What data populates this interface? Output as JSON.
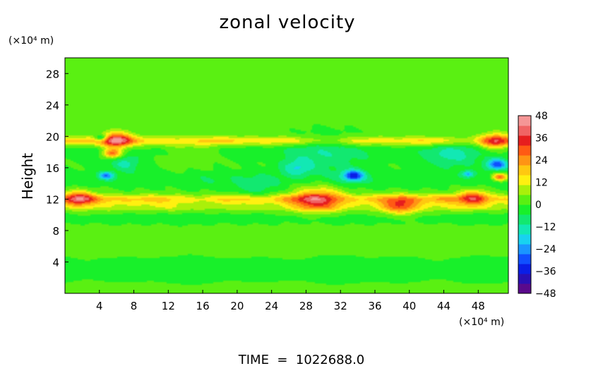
{
  "chart_data": {
    "type": "heatmap",
    "title": "zonal velocity",
    "ylabel": "Height",
    "x_unit": "(×10⁴ m)",
    "y_unit": "(×10⁴ m)",
    "footer": "TIME  =  1022688.0",
    "xlim": [
      0,
      51.5
    ],
    "ylim": [
      0,
      30
    ],
    "x_ticks": [
      4,
      8,
      12,
      16,
      20,
      24,
      28,
      32,
      36,
      40,
      44,
      48
    ],
    "y_ticks": [
      4,
      8,
      12,
      16,
      20,
      24,
      28
    ],
    "colorbar": {
      "labels": [
        "48",
        "36",
        "24",
        "12",
        "0",
        "−12",
        "−24",
        "−36",
        "−48"
      ],
      "values": [
        48,
        36,
        24,
        12,
        0,
        -12,
        -24,
        -36,
        -48
      ],
      "range": [
        -48,
        48
      ],
      "colors": [
        "#5a0a8c",
        "#2a10b4",
        "#0a1ee6",
        "#1050ff",
        "#1a96ff",
        "#18d2f0",
        "#12e8b4",
        "#12e870",
        "#18f02a",
        "#5af012",
        "#aaf00a",
        "#fff010",
        "#ffc810",
        "#ff9414",
        "#ff5a14",
        "#e61e1e",
        "#f06464",
        "#f59696"
      ]
    },
    "field": {
      "background": 1,
      "bands": [
        {
          "y": 19.4,
          "half_width": 0.6,
          "value": 18
        },
        {
          "y": 12.0,
          "half_width": 0.6,
          "value": 20
        },
        {
          "y": 11.0,
          "half_width": 0.6,
          "value": 10
        },
        {
          "y": 18.0,
          "half_width": 1.3,
          "value": -5
        },
        {
          "y": 14.5,
          "half_width": 1.2,
          "value": -6
        },
        {
          "y": 9.6,
          "half_width": 0.8,
          "value": -4
        },
        {
          "y": 3.0,
          "half_width": 1.8,
          "value": -3
        }
      ],
      "spots": [
        {
          "x": 6.0,
          "y": 19.5,
          "r": 1.0,
          "value": 36
        },
        {
          "x": 5.5,
          "y": 17.8,
          "r": 0.6,
          "value": 30
        },
        {
          "x": 4.8,
          "y": 15.0,
          "r": 0.5,
          "value": -24
        },
        {
          "x": 4.2,
          "y": 19.8,
          "r": 0.4,
          "value": -24
        },
        {
          "x": 1.5,
          "y": 12.1,
          "r": 1.0,
          "value": 28
        },
        {
          "x": 7.0,
          "y": 16.5,
          "r": 1.0,
          "value": -12
        },
        {
          "x": 33.5,
          "y": 15.0,
          "r": 0.7,
          "value": -30
        },
        {
          "x": 29.5,
          "y": 12.0,
          "r": 1.6,
          "value": 26
        },
        {
          "x": 39.0,
          "y": 11.2,
          "r": 1.2,
          "value": 24
        },
        {
          "x": 30.5,
          "y": 17.5,
          "r": 2.6,
          "value": -8
        },
        {
          "x": 50.2,
          "y": 16.4,
          "r": 0.7,
          "value": -30
        },
        {
          "x": 50.5,
          "y": 14.8,
          "r": 0.5,
          "value": 32
        },
        {
          "x": 50.0,
          "y": 19.4,
          "r": 1.0,
          "value": 26
        },
        {
          "x": 47.5,
          "y": 12.2,
          "r": 1.0,
          "value": 24
        },
        {
          "x": 46.8,
          "y": 15.2,
          "r": 0.4,
          "value": -20
        },
        {
          "x": 45.0,
          "y": 17.5,
          "r": 1.8,
          "value": -10
        },
        {
          "x": 27.0,
          "y": 16.0,
          "r": 1.0,
          "value": -14
        },
        {
          "x": 22.0,
          "y": 13.5,
          "r": 1.5,
          "value": -7
        },
        {
          "x": 14.0,
          "y": 18.2,
          "r": 2.0,
          "value": 6
        }
      ]
    }
  }
}
